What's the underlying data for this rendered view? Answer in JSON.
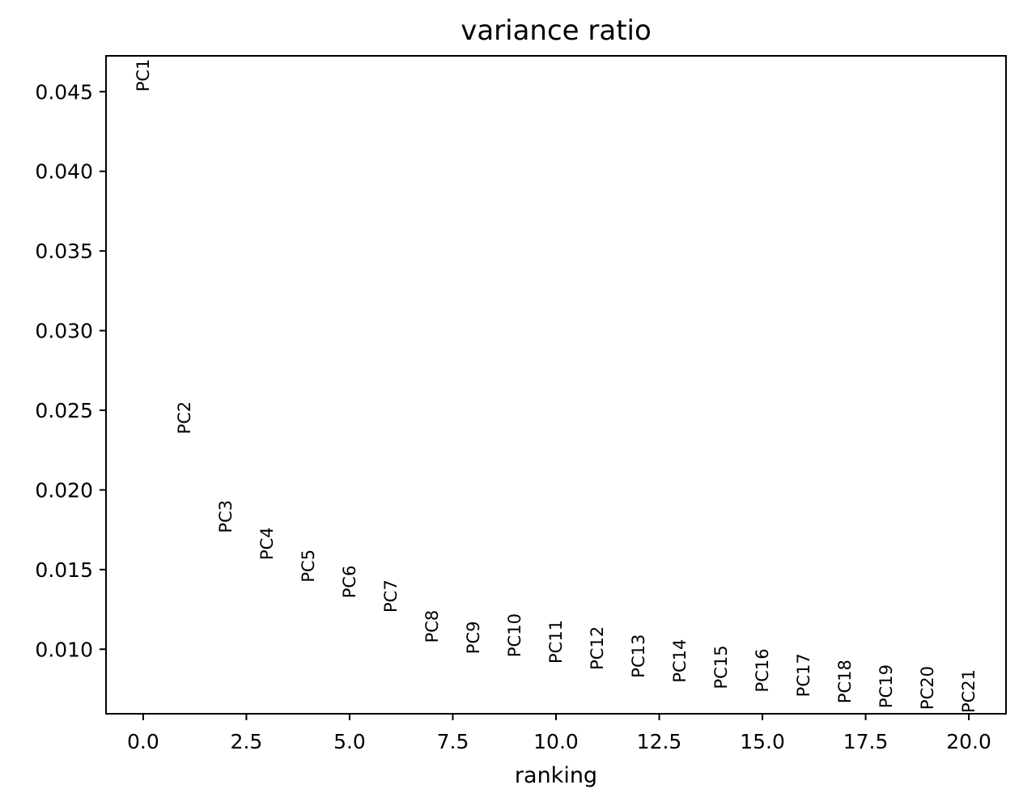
{
  "chart_data": {
    "type": "scatter",
    "title": "variance ratio",
    "xlabel": "ranking",
    "ylabel": "",
    "xlim": [
      -0.9,
      20.9
    ],
    "ylim": [
      0.00595,
      0.04725
    ],
    "xticks": [
      "0.0",
      "2.5",
      "5.0",
      "7.5",
      "10.0",
      "12.5",
      "15.0",
      "17.5",
      "20.0"
    ],
    "xtick_values": [
      0,
      2.5,
      5,
      7.5,
      10,
      12.5,
      15,
      17.5,
      20
    ],
    "yticks": [
      "0.010",
      "0.015",
      "0.020",
      "0.025",
      "0.030",
      "0.035",
      "0.040",
      "0.045"
    ],
    "ytick_values": [
      0.01,
      0.015,
      0.02,
      0.025,
      0.03,
      0.035,
      0.04,
      0.045
    ],
    "grid": false,
    "points": [
      {
        "label": "PC1",
        "x": 0,
        "y": 0.045
      },
      {
        "label": "PC2",
        "x": 1,
        "y": 0.0235
      },
      {
        "label": "PC3",
        "x": 2,
        "y": 0.0173
      },
      {
        "label": "PC4",
        "x": 3,
        "y": 0.0156
      },
      {
        "label": "PC5",
        "x": 4,
        "y": 0.0142
      },
      {
        "label": "PC6",
        "x": 5,
        "y": 0.0132
      },
      {
        "label": "PC7",
        "x": 6,
        "y": 0.0123
      },
      {
        "label": "PC8",
        "x": 7,
        "y": 0.0104
      },
      {
        "label": "PC9",
        "x": 8,
        "y": 0.0097
      },
      {
        "label": "PC10",
        "x": 9,
        "y": 0.0095
      },
      {
        "label": "PC11",
        "x": 10,
        "y": 0.0091
      },
      {
        "label": "PC12",
        "x": 11,
        "y": 0.0087
      },
      {
        "label": "PC13",
        "x": 12,
        "y": 0.0082
      },
      {
        "label": "PC14",
        "x": 13,
        "y": 0.0079
      },
      {
        "label": "PC15",
        "x": 14,
        "y": 0.0075
      },
      {
        "label": "PC16",
        "x": 15,
        "y": 0.0073
      },
      {
        "label": "PC17",
        "x": 16,
        "y": 0.007
      },
      {
        "label": "PC18",
        "x": 17,
        "y": 0.0066
      },
      {
        "label": "PC19",
        "x": 18,
        "y": 0.0063
      },
      {
        "label": "PC20",
        "x": 19,
        "y": 0.0062
      },
      {
        "label": "PC21",
        "x": 20,
        "y": 0.006
      }
    ]
  }
}
